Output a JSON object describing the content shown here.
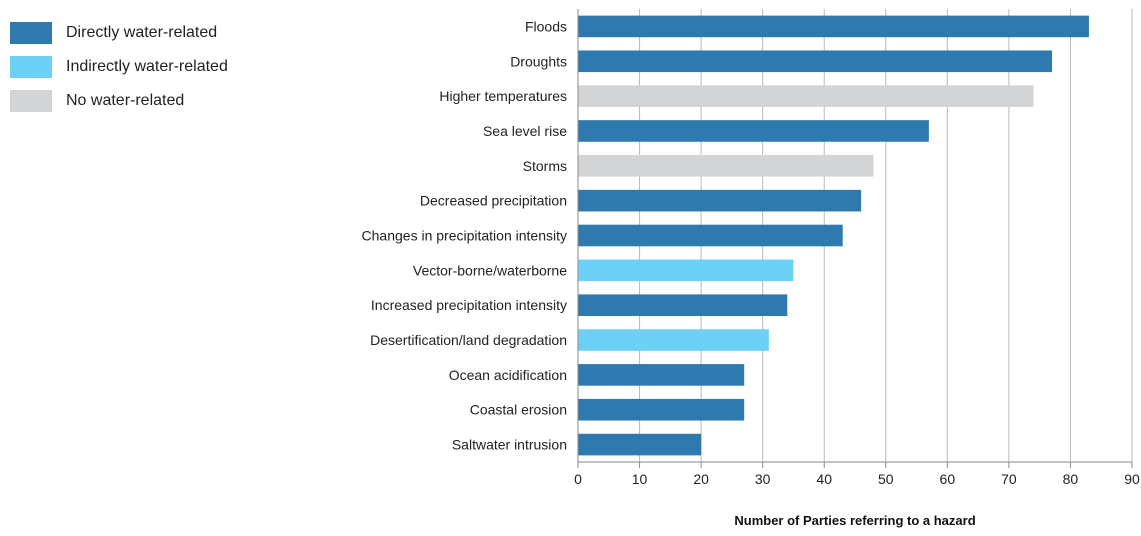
{
  "legend": [
    {
      "label": "Directly water-related",
      "color": "#2e79ad"
    },
    {
      "label": "Indirectly water-related",
      "color": "#6dd0f6"
    },
    {
      "label": "No water-related",
      "color": "#d3d4d5"
    }
  ],
  "chart_data": {
    "type": "bar",
    "orientation": "horizontal",
    "title": "",
    "xlabel": "Number of Parties referring to a hazard",
    "ylabel": "",
    "xlim": [
      0,
      90
    ],
    "xticks": [
      0,
      10,
      20,
      30,
      40,
      50,
      60,
      70,
      80,
      90
    ],
    "grid": "vertical",
    "legend_position": "top-left",
    "categories": [
      "Floods",
      "Droughts",
      "Higher temperatures",
      "Sea level rise",
      "Storms",
      "Decreased precipitation",
      "Changes in precipitation intensity",
      "Vector-borne/waterborne",
      "Increased precipitation intensity",
      "Desertification/land degradation",
      "Ocean acidification",
      "Coastal erosion",
      "Saltwater intrusion"
    ],
    "values": [
      83,
      77,
      74,
      57,
      48,
      46,
      43,
      35,
      34,
      31,
      27,
      27,
      20
    ],
    "groups": [
      "Directly water-related",
      "Directly water-related",
      "No water-related",
      "Directly water-related",
      "No water-related",
      "Directly water-related",
      "Directly water-related",
      "Indirectly water-related",
      "Directly water-related",
      "Indirectly water-related",
      "Directly water-related",
      "Directly water-related",
      "Directly water-related"
    ]
  }
}
